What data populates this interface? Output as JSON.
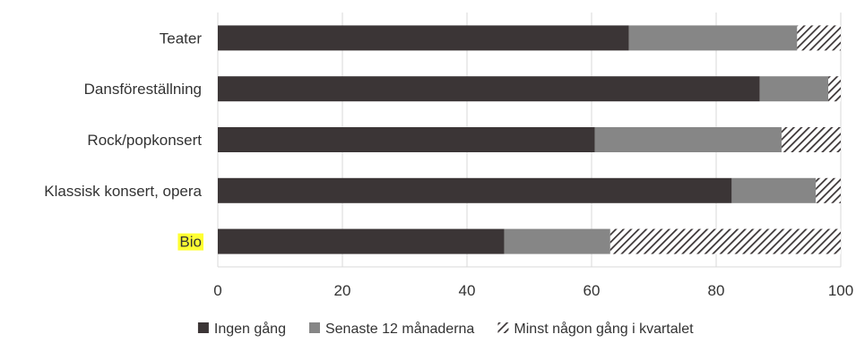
{
  "chart_data": {
    "type": "bar",
    "orientation": "horizontal",
    "stacked": true,
    "categories": [
      "Teater",
      "Dansföreställning",
      "Rock/popkonsert",
      "Klassisk konsert, opera",
      "Bio"
    ],
    "highlighted_category": "Bio",
    "series": [
      {
        "name": "Ingen gång",
        "values": [
          66,
          87,
          60.5,
          82.5,
          46
        ],
        "color": "#3b3536",
        "pattern": "solid"
      },
      {
        "name": "Senaste 12 månaderna",
        "values": [
          27,
          11,
          30,
          13.5,
          17
        ],
        "color": "#868686",
        "pattern": "solid"
      },
      {
        "name": "Minst någon gång i kvartalet",
        "values": [
          7,
          2,
          9.5,
          4,
          37
        ],
        "color": "#3b3536",
        "pattern": "hatched"
      }
    ],
    "xlim": [
      0,
      100
    ],
    "xticks": [
      0,
      20,
      40,
      60,
      80,
      100
    ],
    "grid": true,
    "legend_position": "bottom",
    "highlight_color": "#ffff33"
  }
}
